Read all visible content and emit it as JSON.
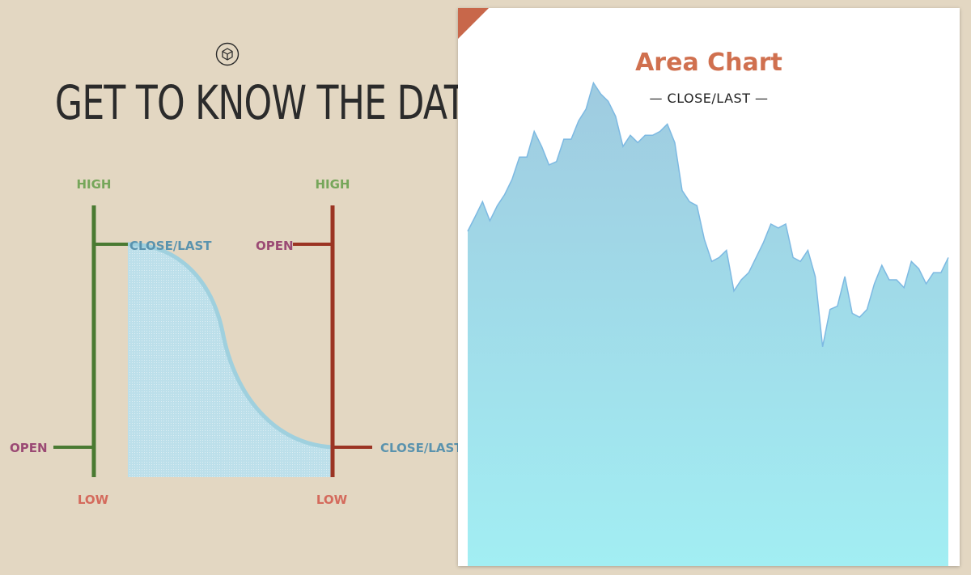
{
  "page": {
    "heading": "GET TO KNOW THE DATA",
    "logo_icon": "cube-icon"
  },
  "diagram": {
    "colors": {
      "high": "#76a65a",
      "low": "#d46a5c",
      "open": "#9b4a74",
      "close": "#5a93ae",
      "bull_bar": "#4a7a32",
      "bear_bar": "#9b3423",
      "area_fill": "#bfe0ea",
      "area_edge": "#9fd0de"
    },
    "left_bar": {
      "high_label": "HIGH",
      "low_label": "LOW",
      "open_label": "OPEN",
      "close_label": "CLOSE/LAST"
    },
    "right_bar": {
      "high_label": "HIGH",
      "low_label": "LOW",
      "open_label": "OPEN",
      "close_label": "CLOSE/LAST"
    }
  },
  "card": {
    "accent_color": "#c8674a",
    "title": "Area Chart",
    "subtitle": "— CLOSE/LAST —"
  },
  "chart_data": {
    "type": "area",
    "title": "Area Chart",
    "subtitle": "— CLOSE/LAST —",
    "xlabel": "",
    "ylabel": "",
    "ylim": [
      0,
      100
    ],
    "grid": false,
    "series": [
      {
        "values": [
          60,
          62.6,
          65.3,
          61.9,
          64.6,
          66.6,
          69.3,
          73.3,
          73.3,
          77.9,
          75.2,
          71.9,
          72.5,
          76.5,
          76.5,
          79.8,
          81.9,
          86.6,
          84.6,
          83.3,
          80.6,
          75.2,
          77.2,
          75.9,
          77.2,
          77.2,
          77.9,
          79.2,
          75.9,
          67.3,
          65.3,
          64.6,
          58.6,
          54.6,
          55.3,
          56.6,
          49.3,
          51.3,
          52.6,
          55.3,
          58,
          61.3,
          60.6,
          61.3,
          55.3,
          54.6,
          56.6,
          51.9,
          39.3,
          46,
          46.6,
          51.9,
          45.3,
          44.6,
          46,
          50.6,
          53.9,
          51.3,
          51.3,
          49.9,
          54.6,
          53.3,
          50.6,
          52.6,
          52.6,
          55.3
        ]
      }
    ],
    "colors": {
      "fill_top": "#9fcbe0",
      "fill_bottom": "#a2eef3",
      "line": "#7db9e2"
    }
  }
}
